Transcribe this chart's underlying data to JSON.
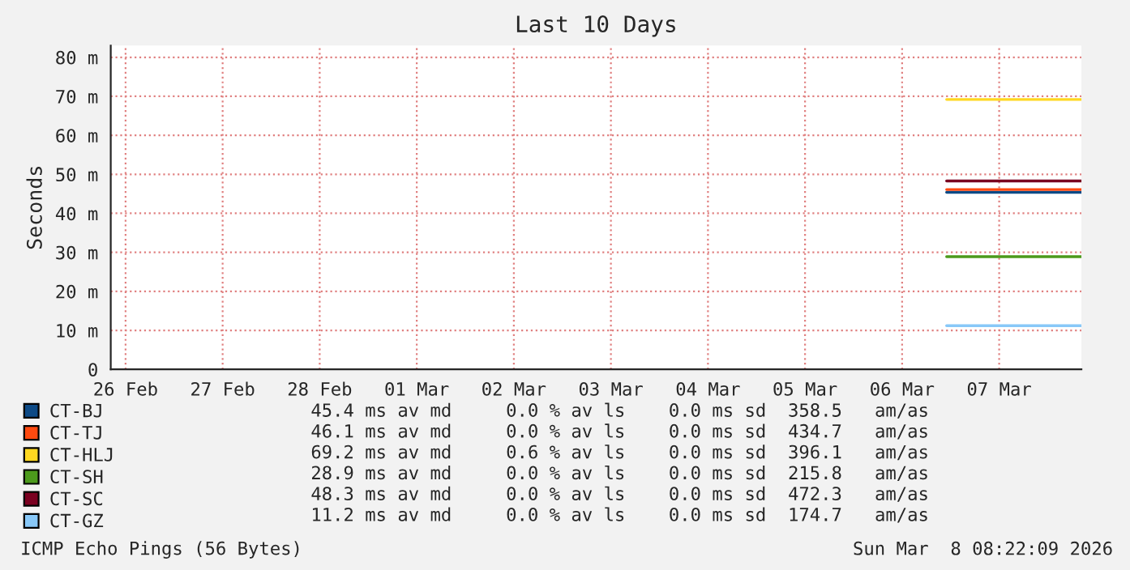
{
  "chart_data": {
    "type": "line",
    "title": "Last 10 Days",
    "ylabel": "Seconds",
    "xlim": [
      "2026-02-26T08:20",
      "2026-03-08T08:20"
    ],
    "xticks": [
      {
        "value": "2026-02-26T12:00",
        "label": "26 Feb"
      },
      {
        "value": "2026-02-27T12:00",
        "label": "27 Feb"
      },
      {
        "value": "2026-02-28T12:00",
        "label": "28 Feb"
      },
      {
        "value": "2026-03-01T12:00",
        "label": "01 Mar"
      },
      {
        "value": "2026-03-02T12:00",
        "label": "02 Mar"
      },
      {
        "value": "2026-03-03T12:00",
        "label": "03 Mar"
      },
      {
        "value": "2026-03-04T12:00",
        "label": "04 Mar"
      },
      {
        "value": "2026-03-05T12:00",
        "label": "05 Mar"
      },
      {
        "value": "2026-03-06T12:00",
        "label": "06 Mar"
      },
      {
        "value": "2026-03-07T12:00",
        "label": "07 Mar"
      }
    ],
    "ylim": [
      0,
      83
    ],
    "yticks": [
      0,
      {
        "value": 10,
        "label": "10 m"
      },
      {
        "value": 20,
        "label": "20 m"
      },
      {
        "value": 30,
        "label": "30 m"
      },
      {
        "value": 40,
        "label": "40 m"
      },
      {
        "value": 50,
        "label": "50 m"
      },
      {
        "value": 60,
        "label": "60 m"
      },
      {
        "value": 70,
        "label": "70 m"
      },
      {
        "value": 80,
        "label": "80 m"
      }
    ],
    "x": [
      "2026-03-06T23:00",
      "2026-03-08T08:20"
    ],
    "series": [
      {
        "name": "CT-BJ",
        "color": "#0d4a86",
        "values": [
          45.4,
          45.4
        ]
      },
      {
        "name": "CT-TJ",
        "color": "#ff4a10",
        "values": [
          46.1,
          46.1
        ]
      },
      {
        "name": "CT-HLJ",
        "color": "#ffd820",
        "values": [
          69.2,
          69.2
        ]
      },
      {
        "name": "CT-SH",
        "color": "#4c9a1c",
        "values": [
          28.9,
          28.9
        ]
      },
      {
        "name": "CT-SC",
        "color": "#7a0020",
        "values": [
          48.3,
          48.3
        ]
      },
      {
        "name": "CT-GZ",
        "color": "#88c8f8",
        "values": [
          11.2,
          11.2
        ]
      }
    ],
    "annotations": [
      "45.4 ms av md     0.0 % av ls    0.0 ms sd  358.5   am/as",
      "46.1 ms av md     0.0 % av ls    0.0 ms sd  434.7   am/as",
      "69.2 ms av md     0.6 % av ls    0.0 ms sd  396.1   am/as",
      "28.9 ms av md     0.0 % av ls    0.0 ms sd  215.8   am/as",
      "48.3 ms av md     0.0 % av ls    0.0 ms sd  472.3   am/as",
      "11.2 ms av md     0.0 % av ls    0.0 ms sd  174.7   am/as",
      "ICMP Echo Pings (56 Bytes)",
      "Sun Mar  8 08:22:09 2026"
    ],
    "grid": true,
    "legend": "bottom left",
    "marker": "none",
    "line_style": "solid"
  }
}
